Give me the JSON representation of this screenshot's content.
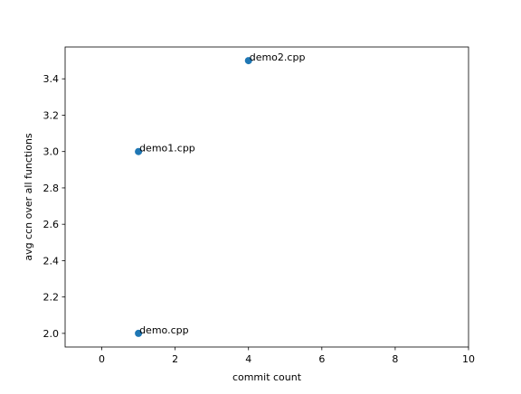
{
  "chart_data": {
    "type": "scatter",
    "title": "",
    "xlabel": "commit count",
    "ylabel": "avg ccn over all functions",
    "xlim": [
      -1,
      10
    ],
    "ylim": [
      1.925,
      3.575
    ],
    "xticks": [
      0,
      2,
      4,
      6,
      8,
      10
    ],
    "xtick_labels": [
      "0",
      "2",
      "4",
      "6",
      "8",
      "10"
    ],
    "yticks": [
      2.0,
      2.2,
      2.4,
      2.6,
      2.8,
      3.0,
      3.2,
      3.4
    ],
    "ytick_labels": [
      "2.0",
      "2.2",
      "2.4",
      "2.6",
      "2.8",
      "3.0",
      "3.2",
      "3.4"
    ],
    "grid": false,
    "legend": "none",
    "series": [
      {
        "color": "#1f77b4",
        "points": [
          {
            "x": 1,
            "y": 2.0,
            "label": "demo.cpp"
          },
          {
            "x": 1,
            "y": 3.0,
            "label": "demo1.cpp"
          },
          {
            "x": 4,
            "y": 3.5,
            "label": "demo2.cpp"
          }
        ]
      }
    ]
  }
}
